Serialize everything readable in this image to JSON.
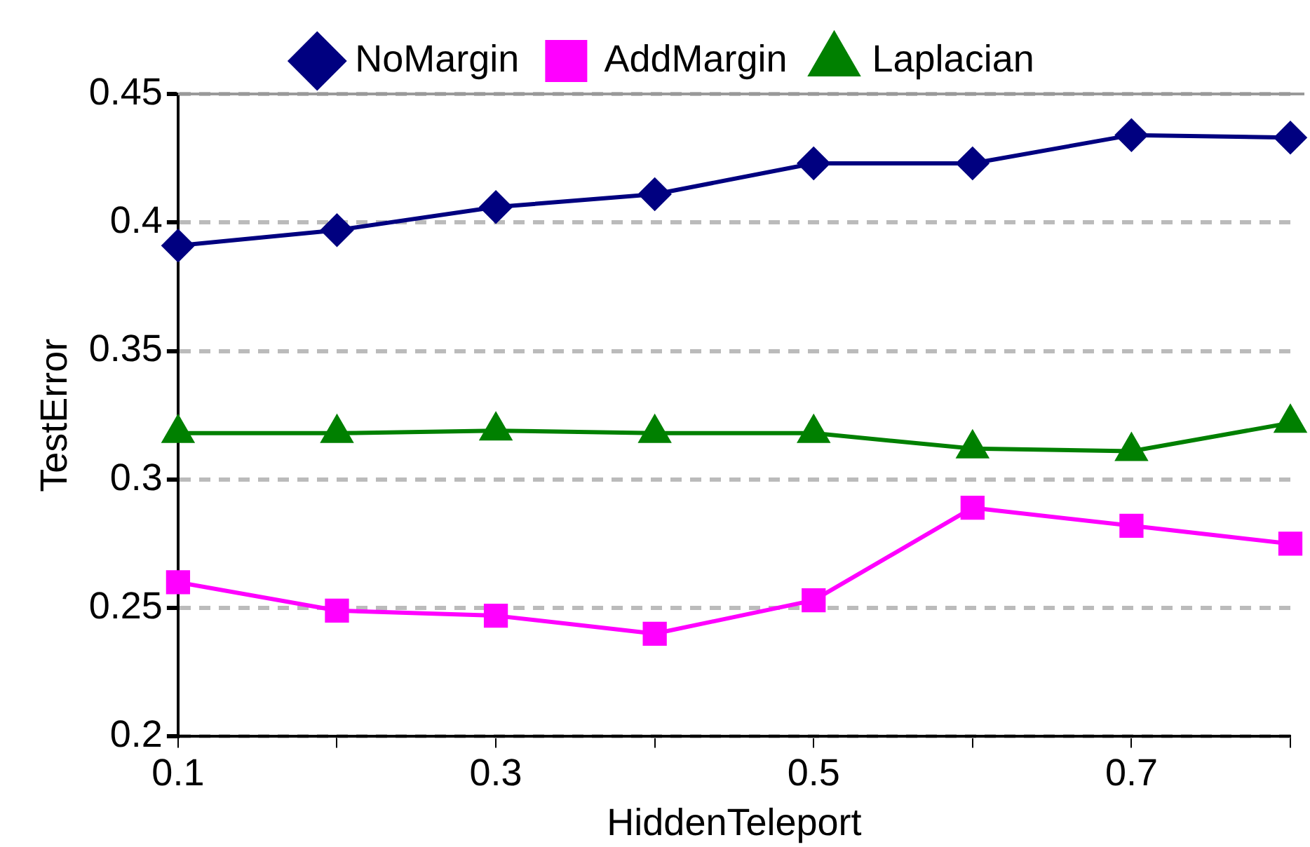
{
  "chart_data": {
    "type": "line",
    "xlabel": "HiddenTeleport",
    "ylabel": "TestError",
    "x": [
      0.1,
      0.2,
      0.3,
      0.4,
      0.5,
      0.6,
      0.7,
      0.8
    ],
    "series": [
      {
        "name": "NoMargin",
        "color": "#000080",
        "marker": "diamond",
        "values": [
          0.391,
          0.397,
          0.406,
          0.411,
          0.423,
          0.423,
          0.434,
          0.433
        ]
      },
      {
        "name": "AddMargin",
        "color": "#ff00ff",
        "marker": "square",
        "values": [
          0.26,
          0.249,
          0.247,
          0.24,
          0.253,
          0.289,
          0.282,
          0.275
        ]
      },
      {
        "name": "Laplacian",
        "color": "#008000",
        "marker": "triangle",
        "values": [
          0.318,
          0.318,
          0.319,
          0.318,
          0.318,
          0.312,
          0.311,
          0.322
        ]
      }
    ],
    "xlim": [
      0.1,
      0.8
    ],
    "xticks": [
      0.1,
      {
        "value": 0.2,
        "label": null
      },
      0.3,
      {
        "value": 0.4,
        "label": null
      },
      0.5,
      {
        "value": 0.6,
        "label": null
      },
      0.7,
      {
        "value": 0.8,
        "label": null
      }
    ],
    "ylim": [
      0.2,
      0.45
    ],
    "yticks": [
      0.2,
      0.25,
      0.3,
      0.35,
      0.4,
      0.45
    ],
    "grid": "y",
    "legend": "top",
    "line_style": "solid"
  }
}
